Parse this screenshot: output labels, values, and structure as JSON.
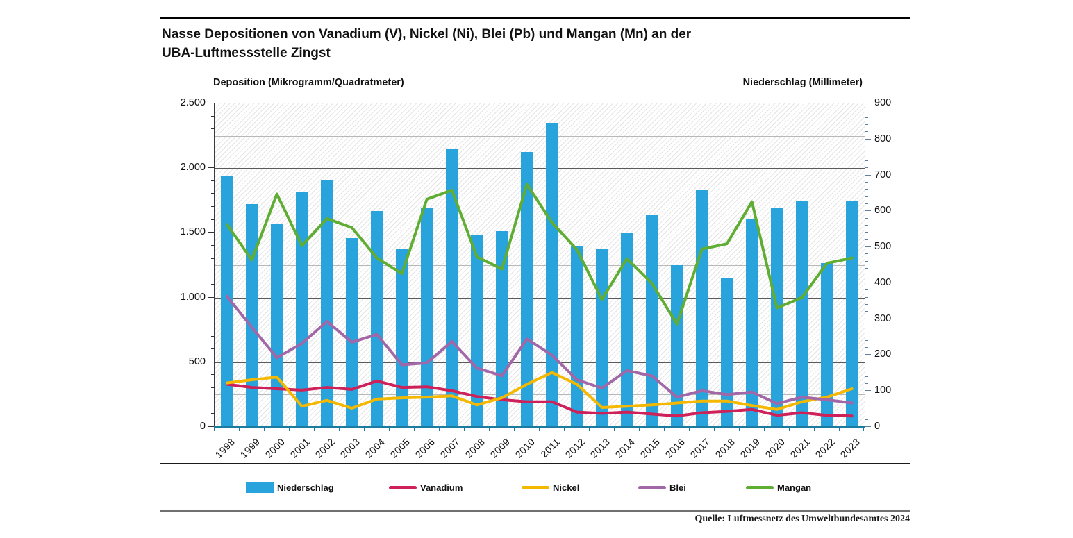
{
  "header": {
    "title_line1": "Nasse Depositionen von Vanadium (V), Nickel (Ni), Blei (Pb) und Mangan (Mn) an der",
    "title_line2": "UBA-Luftmessstelle Zingst"
  },
  "axes": {
    "left_title": "Deposition (Mikrogramm/Quadratmeter)",
    "right_title": "Niederschlag (Millimeter)",
    "left_tick_labels": [
      "0",
      "500",
      "1.000",
      "1.500",
      "2.000",
      "2.500"
    ],
    "right_tick_labels": [
      "0",
      "100",
      "200",
      "300",
      "400",
      "500",
      "600",
      "700",
      "800",
      "900"
    ]
  },
  "chart_data": {
    "type": "bar",
    "subtype": "combo-bar-line-dual-axis",
    "title": "Nasse Depositionen von Vanadium (V), Nickel (Ni), Blei (Pb) und Mangan (Mn) an der UBA-Luftmessstelle Zingst",
    "categories": [
      1998,
      1999,
      2000,
      2001,
      2002,
      2003,
      2004,
      2005,
      2006,
      2007,
      2008,
      2009,
      2010,
      2011,
      2012,
      2013,
      2014,
      2015,
      2016,
      2017,
      2018,
      2019,
      2020,
      2021,
      2022,
      2023
    ],
    "left_axis": {
      "label": "Deposition (Mikrogramm/Quadratmeter)",
      "min": 0,
      "max": 2500,
      "major_step": 500,
      "minor_step": 250
    },
    "right_axis": {
      "label": "Niederschlag (Millimeter)",
      "min": 0,
      "max": 900,
      "major_step": 100,
      "minor_step": 20
    },
    "grid": true,
    "legend_position": "bottom",
    "series": [
      {
        "name": "Niederschlag",
        "type": "bar",
        "axis": "right",
        "color": "#29a3db",
        "values": [
          700,
          620,
          565,
          655,
          685,
          525,
          600,
          495,
          610,
          775,
          535,
          545,
          765,
          845,
          505,
          495,
          540,
          590,
          450,
          660,
          415,
          580,
          610,
          630,
          455,
          630
        ]
      },
      {
        "name": "Vanadium",
        "type": "line",
        "axis": "left",
        "color": "#ce2159",
        "values": [
          330,
          305,
          295,
          285,
          305,
          290,
          355,
          305,
          310,
          280,
          235,
          210,
          195,
          195,
          115,
          105,
          115,
          100,
          85,
          110,
          120,
          135,
          90,
          110,
          90,
          85
        ]
      },
      {
        "name": "Nickel",
        "type": "line",
        "axis": "left",
        "color": "#f5b800",
        "values": [
          340,
          365,
          385,
          160,
          205,
          145,
          215,
          225,
          230,
          240,
          170,
          225,
          330,
          420,
          330,
          150,
          160,
          170,
          185,
          200,
          200,
          165,
          135,
          195,
          230,
          295
        ]
      },
      {
        "name": "Blei",
        "type": "line",
        "axis": "left",
        "color": "#a167a6",
        "values": [
          1010,
          770,
          535,
          645,
          815,
          655,
          715,
          480,
          495,
          660,
          455,
          395,
          680,
          555,
          365,
          300,
          435,
          395,
          230,
          280,
          250,
          270,
          180,
          230,
          210,
          185
        ]
      },
      {
        "name": "Mangan",
        "type": "line",
        "axis": "left",
        "color": "#5fad33",
        "values": [
          1565,
          1290,
          1800,
          1400,
          1610,
          1540,
          1305,
          1185,
          1760,
          1830,
          1315,
          1220,
          1875,
          1580,
          1370,
          985,
          1300,
          1110,
          795,
          1375,
          1415,
          1740,
          920,
          1000,
          1265,
          1305
        ]
      }
    ]
  },
  "legend": {
    "items": [
      {
        "label": "Niederschlag",
        "color": "#29a3db",
        "swatch": "bar"
      },
      {
        "label": "Vanadium",
        "color": "#ce2159",
        "swatch": "line"
      },
      {
        "label": "Nickel",
        "color": "#f5b800",
        "swatch": "line"
      },
      {
        "label": "Blei",
        "color": "#a167a6",
        "swatch": "line"
      },
      {
        "label": "Mangan",
        "color": "#5fad33",
        "swatch": "line"
      }
    ]
  },
  "footer": {
    "source": "Quelle: Luftmessnetz des Umweltbundesamtes 2024"
  }
}
